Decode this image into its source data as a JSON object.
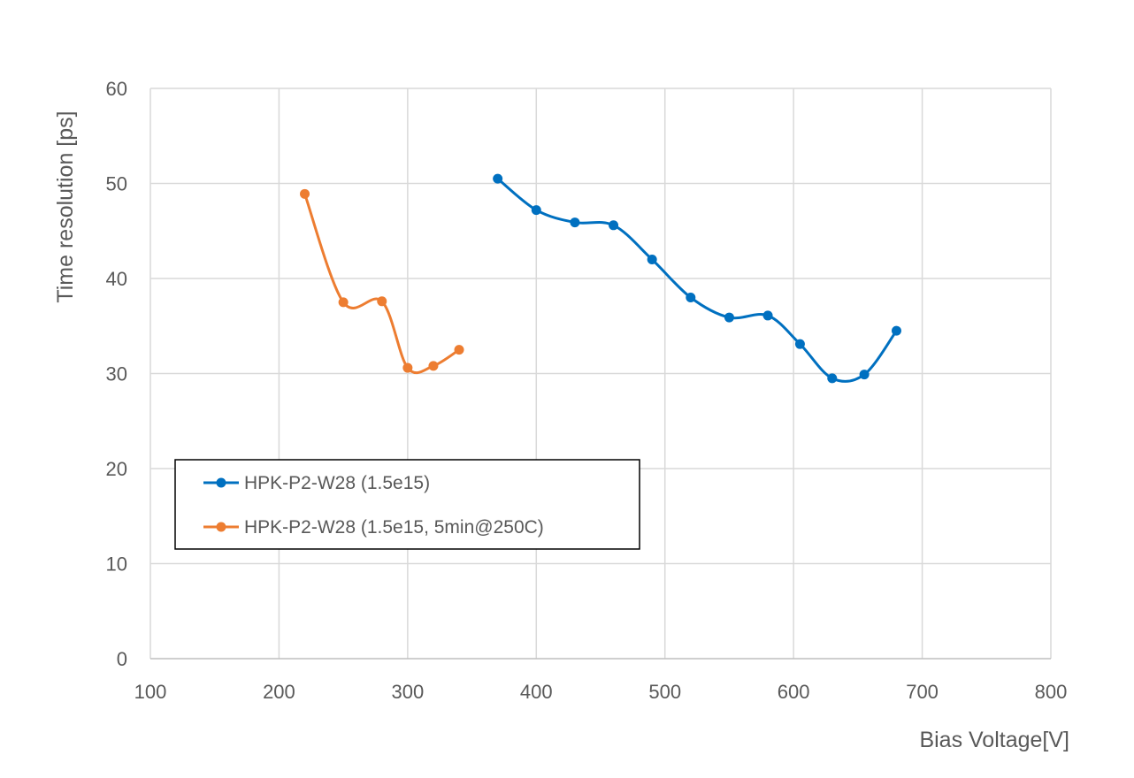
{
  "chart_data": {
    "type": "line",
    "title": "",
    "xlabel": "Bias Voltage[V]",
    "ylabel": "Time resolution [ps]",
    "xlim": [
      100,
      800
    ],
    "ylim": [
      0,
      60
    ],
    "x_ticks": [
      100,
      200,
      300,
      400,
      500,
      600,
      700,
      800
    ],
    "y_ticks": [
      0,
      10,
      20,
      30,
      40,
      50,
      60
    ],
    "grid": true,
    "legend_position": "lower-left",
    "smoothed_lines": true,
    "series": [
      {
        "name": "HPK-P2-W28 (1.5e15)",
        "color": "#0070C0",
        "marker": "circle",
        "x": [
          370,
          400,
          430,
          460,
          490,
          520,
          550,
          580,
          605,
          630,
          655,
          680
        ],
        "y": [
          50.5,
          47.2,
          45.9,
          45.6,
          42.0,
          38.0,
          35.9,
          36.1,
          33.1,
          29.5,
          29.9,
          34.5
        ]
      },
      {
        "name": "HPK-P2-W28 (1.5e15, 5min@250C)",
        "color": "#ED7D31",
        "marker": "circle",
        "x": [
          220,
          250,
          280,
          300,
          320,
          340
        ],
        "y": [
          48.9,
          37.5,
          37.6,
          30.6,
          30.8,
          32.5
        ]
      }
    ]
  }
}
